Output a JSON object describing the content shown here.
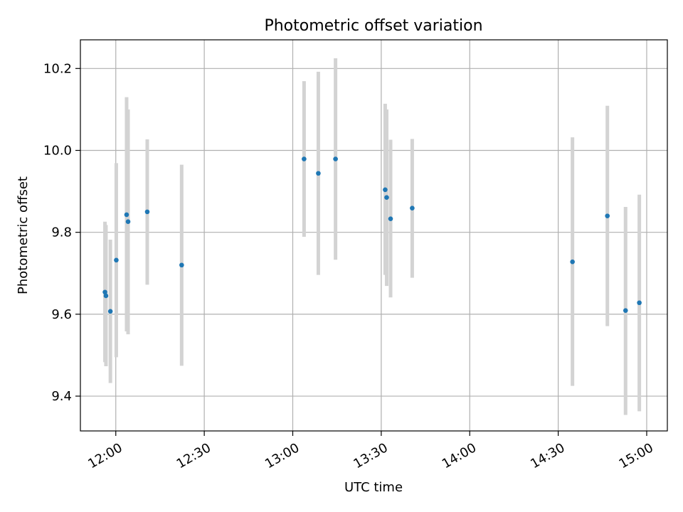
{
  "chart_data": {
    "type": "scatter",
    "title": "Photometric offset variation",
    "xlabel": "UTC time",
    "ylabel": "Photometric offset",
    "x_axis": {
      "type": "time",
      "range": [
        "11:48",
        "15:07"
      ],
      "ticks": [
        "12:00",
        "12:30",
        "13:00",
        "13:30",
        "14:00",
        "14:30",
        "15:00"
      ]
    },
    "y_axis": {
      "range": [
        9.315,
        10.27
      ],
      "ticks": [
        "9.4",
        "9.6",
        "9.8",
        "10.0",
        "10.2"
      ],
      "tick_values": [
        9.4,
        9.6,
        9.8,
        10.0,
        10.2
      ]
    },
    "grid": true,
    "colors": {
      "point": "#1f77b4",
      "errorbar": "#d3d3d3",
      "grid": "#b0b0b0"
    },
    "points": [
      {
        "x": "11:56:20",
        "y": 9.654,
        "err_low": 9.483,
        "err_high": 9.826
      },
      {
        "x": "11:56:40",
        "y": 9.645,
        "err_low": 9.473,
        "err_high": 9.818
      },
      {
        "x": "11:58:10",
        "y": 9.607,
        "err_low": 9.432,
        "err_high": 9.782
      },
      {
        "x": "12:00:10",
        "y": 9.732,
        "err_low": 9.495,
        "err_high": 9.969
      },
      {
        "x": "12:03:40",
        "y": 9.843,
        "err_low": 9.558,
        "err_high": 10.13
      },
      {
        "x": "12:04:10",
        "y": 9.826,
        "err_low": 9.551,
        "err_high": 10.1
      },
      {
        "x": "12:10:40",
        "y": 9.85,
        "err_low": 9.672,
        "err_high": 10.027
      },
      {
        "x": "12:22:20",
        "y": 9.72,
        "err_low": 9.474,
        "err_high": 9.965
      },
      {
        "x": "13:03:50",
        "y": 9.979,
        "err_low": 9.789,
        "err_high": 10.169
      },
      {
        "x": "13:08:40",
        "y": 9.944,
        "err_low": 9.696,
        "err_high": 10.192
      },
      {
        "x": "13:14:30",
        "y": 9.979,
        "err_low": 9.733,
        "err_high": 10.225
      },
      {
        "x": "13:31:20",
        "y": 9.904,
        "err_low": 9.696,
        "err_high": 10.114
      },
      {
        "x": "13:31:50",
        "y": 9.885,
        "err_low": 9.669,
        "err_high": 10.1
      },
      {
        "x": "13:33:10",
        "y": 9.833,
        "err_low": 9.641,
        "err_high": 10.026
      },
      {
        "x": "13:40:30",
        "y": 9.859,
        "err_low": 9.689,
        "err_high": 10.028
      },
      {
        "x": "14:34:50",
        "y": 9.728,
        "err_low": 9.425,
        "err_high": 10.032
      },
      {
        "x": "14:46:40",
        "y": 9.84,
        "err_low": 9.571,
        "err_high": 10.109
      },
      {
        "x": "14:52:50",
        "y": 9.609,
        "err_low": 9.354,
        "err_high": 9.862
      },
      {
        "x": "14:57:30",
        "y": 9.628,
        "err_low": 9.363,
        "err_high": 9.892
      }
    ]
  }
}
